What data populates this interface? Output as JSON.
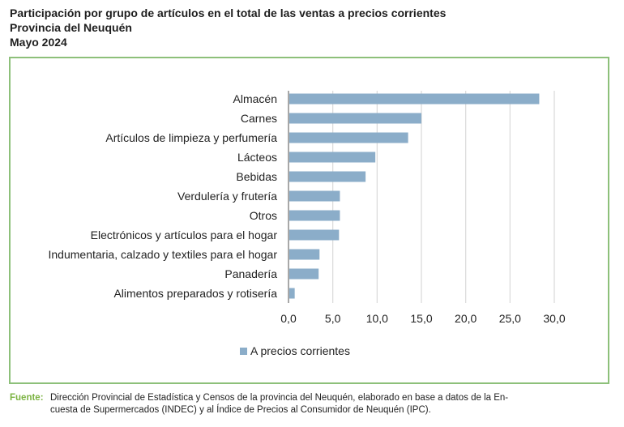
{
  "header": {
    "title_line1": "Participación por grupo de artículos en el total de las ventas a precios corrientes",
    "title_line2": "Provincia del Neuquén",
    "title_line3": "Mayo 2024"
  },
  "colors": {
    "bar": "#8badc9",
    "frame": "#8dc07a",
    "grid": "#d9d9d9",
    "axis": "#8c8c8c",
    "source_label": "#7cb342"
  },
  "chart_data": {
    "type": "bar",
    "orientation": "horizontal",
    "title": "Participación por grupo de artículos en el total de las ventas a precios corrientes",
    "subtitle": "Provincia del Neuquén — Mayo 2024",
    "categories": [
      "Almacén",
      "Carnes",
      "Artículos de limpieza y perfumería",
      "Lácteos",
      "Bebidas",
      "Verdulería y frutería",
      "Otros",
      "Electrónicos y artículos para el hogar",
      "Indumentaria, calzado y textiles para el hogar",
      "Panadería",
      "Alimentos preparados y rotisería"
    ],
    "series": [
      {
        "name": "A precios corrientes",
        "values": [
          28.3,
          15.0,
          13.5,
          9.8,
          8.7,
          5.8,
          5.8,
          5.7,
          3.5,
          3.4,
          0.7
        ]
      }
    ],
    "xlabel": "",
    "ylabel": "",
    "xlim": [
      0,
      30
    ],
    "xticks": [
      0,
      5,
      10,
      15,
      20,
      25,
      30
    ],
    "xtick_labels": [
      "0,0",
      "5,0",
      "10,0",
      "15,0",
      "20,0",
      "25,0",
      "30,0"
    ],
    "grid": true,
    "legend_position": "bottom"
  },
  "legend": {
    "label": "A precios corrientes"
  },
  "source": {
    "label": "Fuente:",
    "line1": "Dirección Provincial de Estadística y Censos de la provincia del Neuquén, elaborado en base a datos de la En-",
    "line2": "cuesta de Supermercados (INDEC) y al Índice de Precios al Consumidor de Neuquén (IPC)."
  }
}
